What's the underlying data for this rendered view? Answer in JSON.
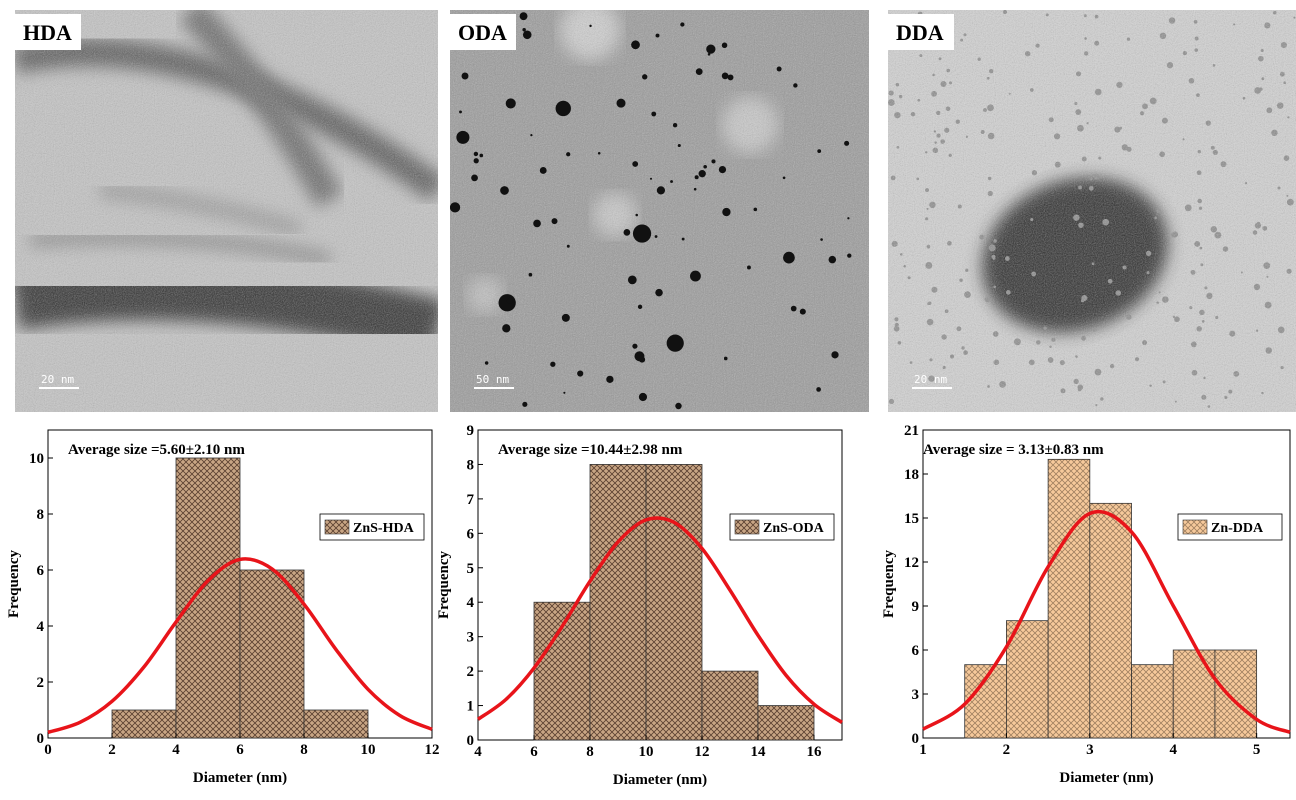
{
  "images": [
    {
      "label": "HDA",
      "scale": "20 nm"
    },
    {
      "label": "ODA",
      "scale": "50 nm"
    },
    {
      "label": "DDA",
      "scale": "20 nm"
    }
  ],
  "chart_data": [
    {
      "type": "histogram",
      "annotation": "Average size =5.60±2.10 nm",
      "xlabel": "Diameter (nm)",
      "ylabel": "Frequency",
      "series_name": "ZnS-HDA",
      "color": "#c8a584",
      "hatch_color": "#5a4030",
      "legend": "right",
      "bins": [
        2,
        4,
        6,
        8,
        10
      ],
      "values": [
        1,
        10,
        6,
        1
      ],
      "xlim": [
        0,
        12
      ],
      "xticks": [
        0,
        2,
        4,
        6,
        8,
        10,
        12
      ],
      "ylim": [
        0,
        11
      ],
      "yticks": [
        0,
        2,
        4,
        6,
        8,
        10
      ],
      "fit": {
        "color": "#e8141a",
        "x": [
          0,
          1,
          2,
          3,
          4,
          5,
          6,
          7,
          8,
          9,
          10,
          11,
          12
        ],
        "values": [
          0.2,
          0.56,
          1.31,
          2.54,
          4.14,
          5.62,
          6.38,
          6.04,
          4.78,
          3.16,
          1.74,
          0.8,
          0.31
        ]
      }
    },
    {
      "type": "histogram",
      "annotation": "Average size =10.44±2.98 nm",
      "xlabel": "Diameter (nm)",
      "ylabel": "Frequency",
      "series_name": "ZnS-ODA",
      "color": "#c8a584",
      "hatch_color": "#5a4030",
      "legend": "right",
      "bins": [
        6,
        8,
        10,
        12,
        14,
        16
      ],
      "values": [
        4,
        8,
        8,
        2,
        1
      ],
      "xlim": [
        4,
        17
      ],
      "xticks": [
        4,
        6,
        8,
        10,
        12,
        14,
        16
      ],
      "ylim": [
        0,
        9
      ],
      "yticks": [
        0,
        1,
        2,
        3,
        4,
        5,
        6,
        7,
        8,
        9
      ],
      "fit": {
        "color": "#e8141a",
        "x": [
          4,
          5,
          6,
          7,
          8,
          9,
          10,
          11,
          12,
          13,
          14,
          15,
          16,
          17
        ],
        "values": [
          0.6,
          1.18,
          2.09,
          3.29,
          4.61,
          5.75,
          6.39,
          6.32,
          5.56,
          4.35,
          3.04,
          1.88,
          1.04,
          0.51
        ]
      }
    },
    {
      "type": "histogram",
      "annotation": "Average size = 3.13±0.83 nm",
      "xlabel": "Diameter (nm)",
      "ylabel": "Frequency",
      "series_name": "Zn-DDA",
      "color": "#f6c99b",
      "hatch_color": "#a08060",
      "legend": "right",
      "bins": [
        1.5,
        2,
        2.5,
        3,
        3.5,
        4,
        4.5,
        5
      ],
      "values": [
        5,
        8,
        19,
        16,
        5,
        6,
        6
      ],
      "xlim": [
        1,
        5.4
      ],
      "xticks": [
        1,
        2,
        3,
        4,
        5
      ],
      "ylim": [
        0,
        21
      ],
      "yticks": [
        0,
        3,
        6,
        9,
        12,
        15,
        18,
        21
      ],
      "fit": {
        "color": "#e8141a",
        "x": [
          1,
          1.5,
          2,
          2.5,
          3,
          3.5,
          4,
          4.5,
          5,
          5.4
        ],
        "values": [
          0.6,
          2.31,
          6.21,
          11.67,
          15.31,
          14.05,
          9.02,
          4.04,
          1.27,
          0.39
        ]
      }
    }
  ]
}
